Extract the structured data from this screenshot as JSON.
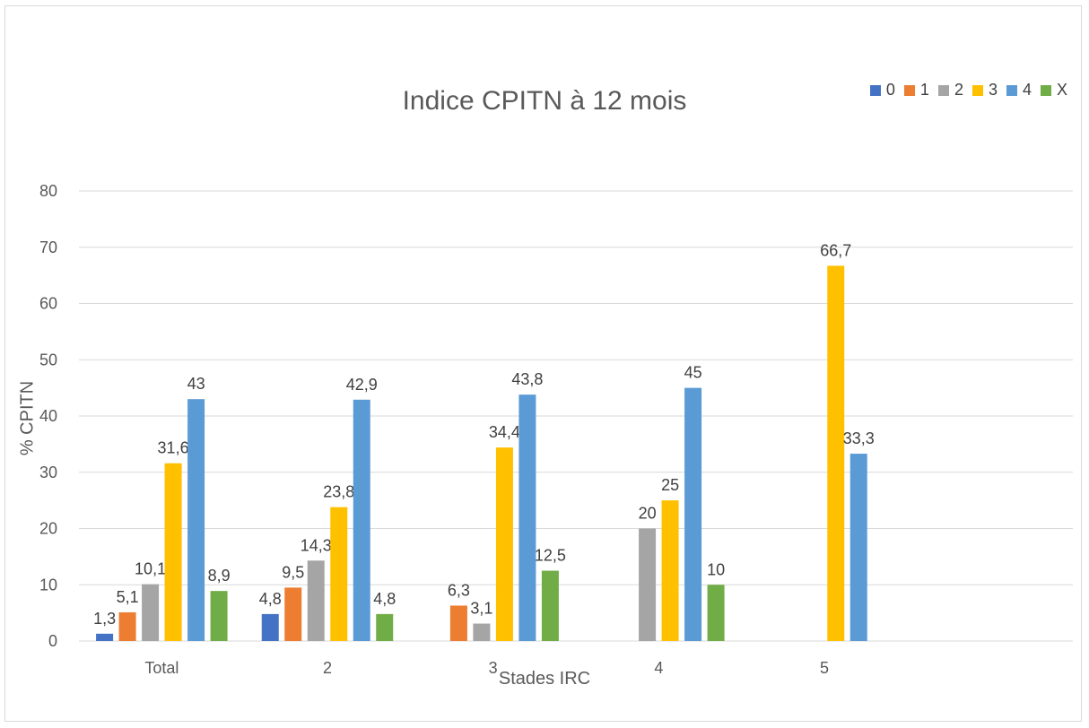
{
  "chart_data": {
    "type": "bar",
    "title": "Indice CPITN à 12 mois",
    "xlabel": "Stades IRC",
    "ylabel": "% CPITN",
    "ylim": [
      0,
      80
    ],
    "yticks": [
      0,
      10,
      20,
      30,
      40,
      50,
      60,
      70,
      80
    ],
    "categories": [
      "Total",
      "2",
      "3",
      "4",
      "5",
      ""
    ],
    "series": [
      {
        "name": "0",
        "color": "#4472C4",
        "values": [
          1.3,
          4.8,
          null,
          null,
          null,
          null
        ]
      },
      {
        "name": "1",
        "color": "#ED7D31",
        "values": [
          5.1,
          9.5,
          6.3,
          null,
          null,
          null
        ]
      },
      {
        "name": "2",
        "color": "#A5A5A5",
        "values": [
          10.1,
          14.3,
          3.1,
          20,
          null,
          null
        ]
      },
      {
        "name": "3",
        "color": "#FFC000",
        "values": [
          31.6,
          23.8,
          34.4,
          25,
          66.7,
          null
        ]
      },
      {
        "name": "4",
        "color": "#5B9BD5",
        "values": [
          43,
          42.9,
          43.8,
          45,
          33.3,
          null
        ]
      },
      {
        "name": "X",
        "color": "#70AD47",
        "values": [
          8.9,
          4.8,
          12.5,
          10,
          null,
          null
        ]
      }
    ],
    "data_labels": [
      [
        "1,3",
        "5,1",
        "10,1",
        "31,6",
        "43",
        "8,9"
      ],
      [
        "4,8",
        "9,5",
        "14,3",
        "23,8",
        "42,9",
        "4,8"
      ],
      [
        null,
        "6,3",
        "3,1",
        "34,4",
        "43,8",
        "12,5"
      ],
      [
        null,
        null,
        "20",
        "25",
        "45",
        "10"
      ],
      [
        null,
        null,
        null,
        "66,7",
        "33,3",
        null
      ],
      [
        null,
        null,
        null,
        null,
        null,
        null
      ]
    ],
    "legend_position": "top-right",
    "grid": true
  }
}
